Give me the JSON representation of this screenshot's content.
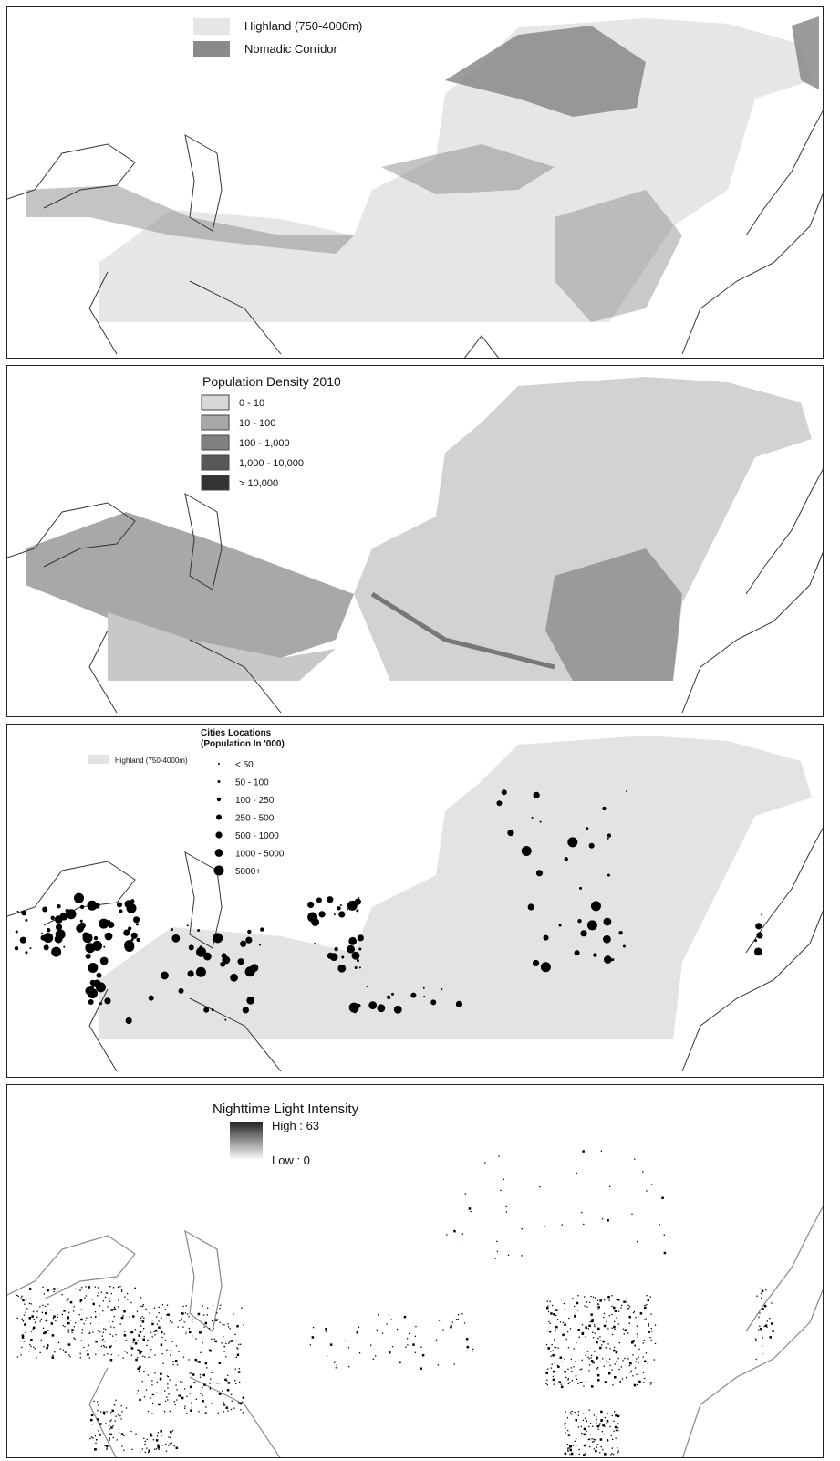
{
  "panels": [
    {
      "legend": {
        "items": [
          "Highland (750-4000m)",
          "Nomadic Corridor"
        ]
      }
    },
    {
      "legend": {
        "title": "Population Density 2010",
        "items": [
          "0 - 10",
          "10 - 100",
          "100 - 1,000",
          "1,000 - 10,000",
          "> 10,000"
        ]
      }
    },
    {
      "legend": {
        "title": "Cities Locations",
        "subtitle": "(Population In '000)",
        "highland": "Highland (750-4000m)",
        "items": [
          "< 50",
          "50 - 100",
          "100 - 250",
          "250 - 500",
          "500 - 1000",
          "1000 - 5000",
          "5000+"
        ]
      }
    },
    {
      "legend": {
        "title": "Nighttime Light Intensity",
        "high": "High : 63",
        "low": "Low : 0"
      }
    }
  ]
}
